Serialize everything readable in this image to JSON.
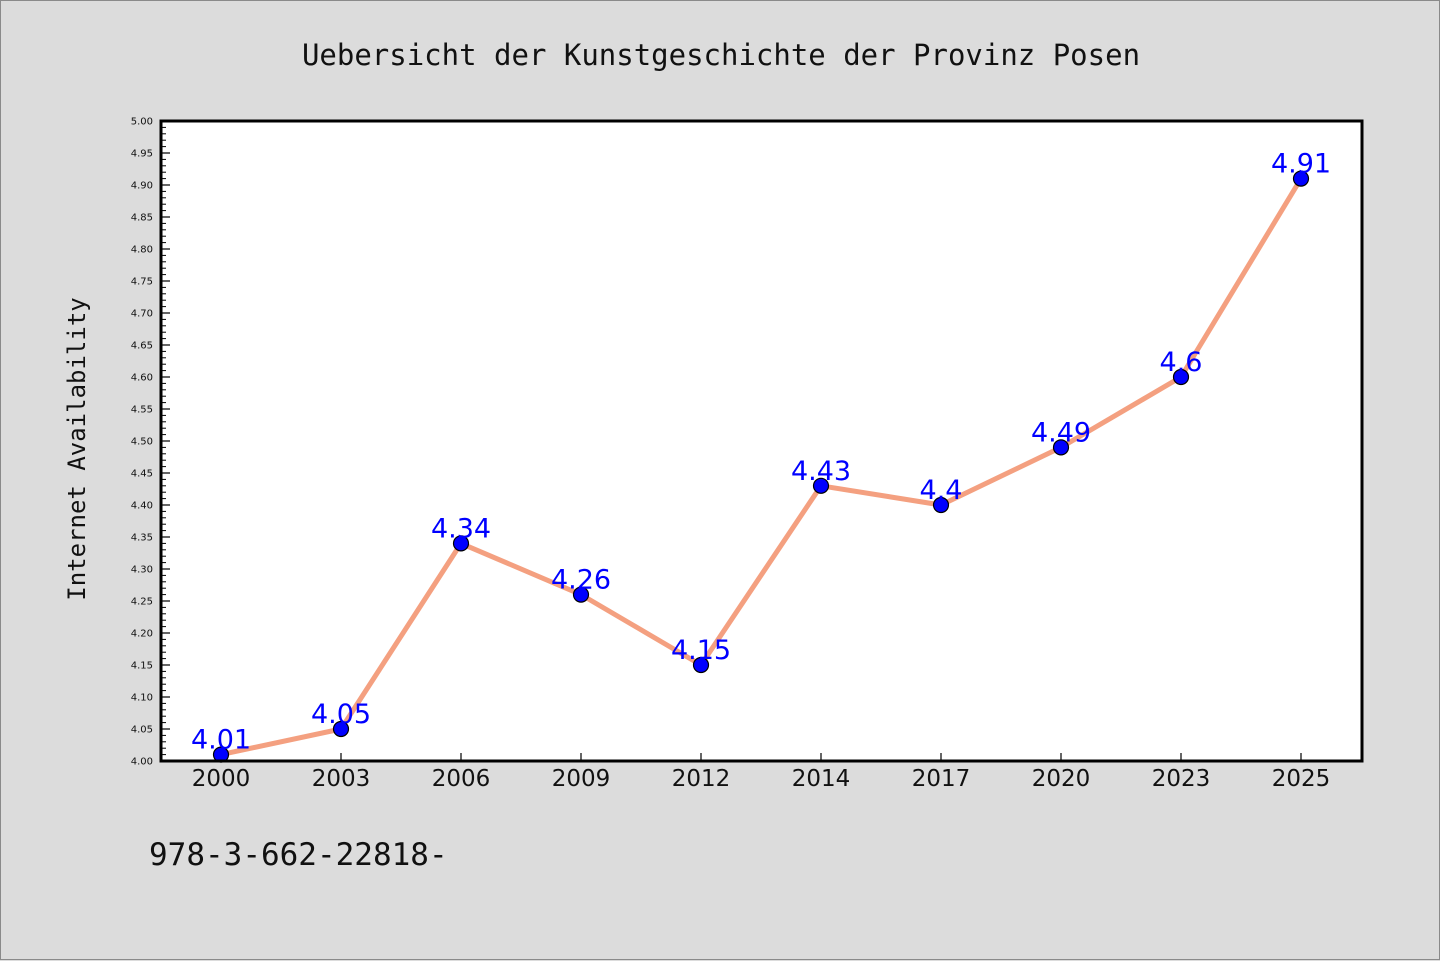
{
  "chart_data": {
    "type": "line",
    "title": "Uebersicht der Kunstgeschichte der Provinz Posen",
    "xlabel": "",
    "ylabel": "Internet Availability",
    "categories": [
      "2000",
      "2003",
      "2006",
      "2009",
      "2012",
      "2014",
      "2017",
      "2020",
      "2023",
      "2025"
    ],
    "series": [
      {
        "values": [
          4.01,
          4.05,
          4.34,
          4.26,
          4.15,
          4.43,
          4.4,
          4.49,
          4.6,
          4.91
        ],
        "labels": [
          "4.01",
          "4.05",
          "4.34",
          "4.26",
          "4.15",
          "4.43",
          "4.4",
          "4.49",
          "4.6",
          "4.91"
        ]
      }
    ],
    "ylim": [
      4.0,
      5.0
    ],
    "yticks": [
      "4.00",
      "4.05",
      "4.10",
      "4.15",
      "4.20",
      "4.25",
      "4.30",
      "4.35",
      "4.40",
      "4.45",
      "4.50",
      "4.55",
      "4.60",
      "4.65",
      "4.70",
      "4.75",
      "4.80",
      "4.85",
      "4.90",
      "4.95",
      "5.00"
    ],
    "grid": false,
    "legend": "none",
    "colors": {
      "line": "#f4a080",
      "marker": "#0000ff",
      "marker_edge": "#000000",
      "data_label": "#0000ff",
      "plot_background": "#ffffff",
      "figure_background": "#dcdcdc"
    }
  },
  "footnote": "978-3-662-22818-"
}
